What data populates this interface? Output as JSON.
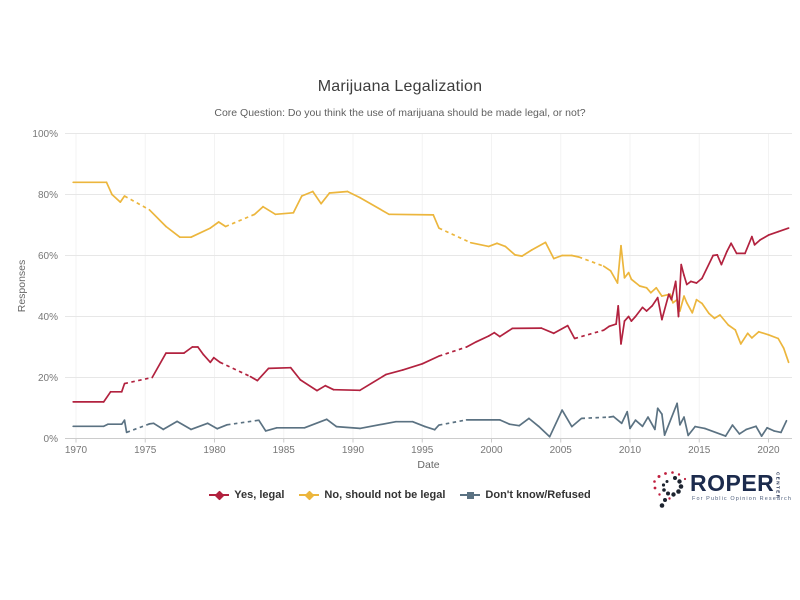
{
  "chart_data": {
    "type": "line",
    "title": "Marijuana Legalization",
    "subtitle": "Core Question: Do you think the use of marijuana should be made legal, or not?",
    "xlabel": "Date",
    "ylabel": "Responses",
    "x_ticks": [
      1970,
      1975,
      1980,
      1985,
      1990,
      1995,
      2000,
      2005,
      2010,
      2015,
      2020
    ],
    "y_ticks": [
      {
        "value": 0,
        "label": "0%"
      },
      {
        "value": 20,
        "label": "20%"
      },
      {
        "value": 40,
        "label": "40%"
      },
      {
        "value": 60,
        "label": "60%"
      },
      {
        "value": 80,
        "label": "80%"
      },
      {
        "value": 100,
        "label": "100%"
      }
    ],
    "x_range": [
      1969.4,
      2022.3
    ],
    "y_range": [
      0,
      100
    ],
    "grid": true,
    "legend_position": "bottom",
    "note": "points are [year, percent, dashed_gap_to_next]; dashed segments mark polling gaps",
    "series": [
      {
        "name": "Don't know/Refused",
        "color": "#5b7282",
        "marker": "square",
        "points": [
          [
            1969.8,
            4,
            0
          ],
          [
            1972.0,
            4,
            0
          ],
          [
            1972.3,
            4.7,
            0
          ],
          [
            1973.3,
            4.7,
            0
          ],
          [
            1973.5,
            6,
            0
          ],
          [
            1973.65,
            2,
            1
          ],
          [
            1975.3,
            4.8,
            0
          ],
          [
            1975.6,
            5,
            0
          ],
          [
            1976.3,
            3,
            0
          ],
          [
            1977.3,
            5.6,
            0
          ],
          [
            1978.3,
            3,
            0
          ],
          [
            1979.5,
            5,
            0
          ],
          [
            1980.2,
            3.2,
            0
          ],
          [
            1980.9,
            4.5,
            1
          ],
          [
            1983.2,
            6,
            0
          ],
          [
            1983.7,
            2.5,
            0
          ],
          [
            1984.5,
            3.5,
            0
          ],
          [
            1986.5,
            3.5,
            0
          ],
          [
            1988.1,
            6.3,
            0
          ],
          [
            1988.8,
            3.9,
            0
          ],
          [
            1990.5,
            3.3,
            0
          ],
          [
            1993.1,
            5.5,
            0
          ],
          [
            1994.3,
            5.5,
            0
          ],
          [
            1995.2,
            3.9,
            0
          ],
          [
            1995.9,
            2.9,
            0
          ],
          [
            1996.2,
            4.4,
            1
          ],
          [
            1998.2,
            6.1,
            0
          ],
          [
            2000.6,
            6.1,
            0
          ],
          [
            2001.3,
            4.7,
            0
          ],
          [
            2002.0,
            4.2,
            0
          ],
          [
            2002.7,
            6.6,
            0
          ],
          [
            2003.4,
            4,
            0
          ],
          [
            2004.2,
            0.6,
            0
          ],
          [
            2005.1,
            9.3,
            0
          ],
          [
            2005.8,
            3.9,
            0
          ],
          [
            2006.5,
            6.6,
            1
          ],
          [
            2008.5,
            7,
            0
          ],
          [
            2008.8,
            7.2,
            0
          ],
          [
            2009.4,
            5,
            0
          ],
          [
            2009.8,
            8.8,
            0
          ],
          [
            2010.0,
            3.3,
            0
          ],
          [
            2010.4,
            6,
            0
          ],
          [
            2010.9,
            4,
            0
          ],
          [
            2011.3,
            7,
            0
          ],
          [
            2011.8,
            3,
            0
          ],
          [
            2012.0,
            9.9,
            0
          ],
          [
            2012.3,
            8,
            0
          ],
          [
            2012.5,
            1.1,
            0
          ],
          [
            2013.4,
            11.5,
            0
          ],
          [
            2013.6,
            4.5,
            0
          ],
          [
            2013.9,
            7,
            0
          ],
          [
            2014.2,
            1,
            0
          ],
          [
            2014.7,
            3.9,
            0
          ],
          [
            2015.4,
            3.3,
            0
          ],
          [
            2016.9,
            0.8,
            0
          ],
          [
            2017.4,
            4.4,
            0
          ],
          [
            2017.9,
            1.5,
            0
          ],
          [
            2018.4,
            3,
            0
          ],
          [
            2019.1,
            4,
            0
          ],
          [
            2019.5,
            0.8,
            0
          ],
          [
            2019.9,
            3.5,
            0
          ],
          [
            2020.4,
            2.5,
            0
          ],
          [
            2020.9,
            2,
            0
          ],
          [
            2021.3,
            5.8,
            0
          ]
        ]
      },
      {
        "name": "No, should not be legal",
        "color": "#ecb63d",
        "marker": "diamond",
        "points": [
          [
            1969.8,
            84,
            0
          ],
          [
            1972.2,
            84,
            0
          ],
          [
            1972.6,
            80,
            0
          ],
          [
            1973.2,
            77.5,
            0
          ],
          [
            1973.5,
            79.5,
            1
          ],
          [
            1975.3,
            75,
            0
          ],
          [
            1976.5,
            69.5,
            0
          ],
          [
            1977.5,
            66,
            0
          ],
          [
            1978.3,
            66,
            0
          ],
          [
            1979.7,
            69,
            0
          ],
          [
            1980.3,
            71,
            0
          ],
          [
            1980.8,
            69.5,
            1
          ],
          [
            1982.9,
            73.5,
            0
          ],
          [
            1983.5,
            76,
            0
          ],
          [
            1984.4,
            73.5,
            0
          ],
          [
            1985.7,
            74,
            0
          ],
          [
            1986.3,
            79.5,
            0
          ],
          [
            1987.1,
            81,
            0
          ],
          [
            1987.7,
            77,
            0
          ],
          [
            1988.3,
            80.5,
            0
          ],
          [
            1989.6,
            81,
            0
          ],
          [
            1990.5,
            79,
            0
          ],
          [
            1992.6,
            73.5,
            0
          ],
          [
            1995.8,
            73.3,
            0
          ],
          [
            1996.2,
            69,
            1
          ],
          [
            1998.5,
            64.2,
            0
          ],
          [
            1999.8,
            63,
            0
          ],
          [
            2000.4,
            64,
            0
          ],
          [
            2001.0,
            63,
            0
          ],
          [
            2001.7,
            60.2,
            0
          ],
          [
            2002.2,
            59.8,
            0
          ],
          [
            2002.9,
            61.8,
            0
          ],
          [
            2003.9,
            64.3,
            0
          ],
          [
            2004.5,
            59,
            0
          ],
          [
            2005.1,
            60,
            0
          ],
          [
            2005.8,
            60,
            0
          ],
          [
            2006.3,
            59.5,
            1
          ],
          [
            2008.1,
            56.5,
            0
          ],
          [
            2008.6,
            55,
            0
          ],
          [
            2009.1,
            51,
            0
          ],
          [
            2009.35,
            63.2,
            0
          ],
          [
            2009.6,
            52.7,
            0
          ],
          [
            2009.9,
            54.4,
            0
          ],
          [
            2010.1,
            52.2,
            0
          ],
          [
            2010.7,
            50,
            0
          ],
          [
            2011.2,
            49.4,
            0
          ],
          [
            2011.5,
            47.8,
            0
          ],
          [
            2011.9,
            49.4,
            0
          ],
          [
            2012.3,
            46.7,
            0
          ],
          [
            2012.9,
            47.3,
            0
          ],
          [
            2013.1,
            44.5,
            0
          ],
          [
            2013.4,
            45.5,
            0
          ],
          [
            2013.6,
            41.8,
            0
          ],
          [
            2013.9,
            46.7,
            0
          ],
          [
            2014.1,
            44.5,
            0
          ],
          [
            2014.5,
            41.2,
            0
          ],
          [
            2014.8,
            45.5,
            0
          ],
          [
            2015.2,
            44.3,
            0
          ],
          [
            2015.7,
            41,
            0
          ],
          [
            2016.1,
            39.4,
            0
          ],
          [
            2016.5,
            40.5,
            0
          ],
          [
            2017.1,
            37.2,
            0
          ],
          [
            2017.6,
            35.6,
            0
          ],
          [
            2018.0,
            31,
            0
          ],
          [
            2018.5,
            34.5,
            0
          ],
          [
            2018.8,
            33,
            0
          ],
          [
            2019.3,
            35,
            0
          ],
          [
            2020.0,
            34,
            0
          ],
          [
            2020.7,
            32.8,
            0
          ],
          [
            2021.1,
            29.6,
            0
          ],
          [
            2021.45,
            25,
            0
          ]
        ]
      },
      {
        "name": "Yes, legal",
        "color": "#b2223f",
        "marker": "diamond",
        "points": [
          [
            1969.8,
            12,
            0
          ],
          [
            1972.0,
            12,
            0
          ],
          [
            1972.5,
            15.3,
            0
          ],
          [
            1973.3,
            15.3,
            0
          ],
          [
            1973.5,
            18,
            1
          ],
          [
            1975.5,
            20,
            0
          ],
          [
            1976.5,
            28,
            0
          ],
          [
            1977.8,
            28,
            0
          ],
          [
            1978.4,
            30,
            0
          ],
          [
            1978.8,
            30,
            0
          ],
          [
            1979.2,
            27.5,
            0
          ],
          [
            1979.7,
            25,
            0
          ],
          [
            1979.95,
            26.5,
            0
          ],
          [
            1980.4,
            25,
            1
          ],
          [
            1982.6,
            20.3,
            0
          ],
          [
            1983.1,
            19,
            0
          ],
          [
            1983.9,
            23,
            0
          ],
          [
            1985.5,
            23.2,
            0
          ],
          [
            1986.2,
            19.2,
            0
          ],
          [
            1987.4,
            15.7,
            0
          ],
          [
            1988.0,
            17.3,
            0
          ],
          [
            1988.6,
            16,
            0
          ],
          [
            1990.5,
            15.8,
            0
          ],
          [
            1992.4,
            21,
            0
          ],
          [
            1993.6,
            22.5,
            0
          ],
          [
            1995.0,
            24.5,
            0
          ],
          [
            1996.2,
            27,
            1
          ],
          [
            1998.2,
            30,
            0
          ],
          [
            1998.9,
            31.7,
            0
          ],
          [
            1999.8,
            33.6,
            0
          ],
          [
            2000.2,
            34.7,
            0
          ],
          [
            2000.6,
            33.4,
            0
          ],
          [
            2001.5,
            36.1,
            0
          ],
          [
            2003.6,
            36.2,
            0
          ],
          [
            2004.5,
            34.5,
            0
          ],
          [
            2005.5,
            37,
            0
          ],
          [
            2006.0,
            32.8,
            1
          ],
          [
            2008.1,
            35.5,
            0
          ],
          [
            2008.5,
            36.8,
            0
          ],
          [
            2009.0,
            37.5,
            0
          ],
          [
            2009.15,
            43.5,
            0
          ],
          [
            2009.35,
            31,
            0
          ],
          [
            2009.6,
            38.5,
            0
          ],
          [
            2009.9,
            40,
            0
          ],
          [
            2010.1,
            38.5,
            0
          ],
          [
            2010.4,
            40,
            0
          ],
          [
            2010.9,
            43,
            0
          ],
          [
            2011.2,
            41.8,
            0
          ],
          [
            2011.6,
            43.5,
            0
          ],
          [
            2012.0,
            46.2,
            0
          ],
          [
            2012.3,
            39,
            0
          ],
          [
            2012.8,
            47.3,
            0
          ],
          [
            2013.0,
            45.5,
            0
          ],
          [
            2013.3,
            51.5,
            0
          ],
          [
            2013.5,
            40,
            0
          ],
          [
            2013.7,
            57,
            0
          ],
          [
            2013.9,
            53.5,
            0
          ],
          [
            2014.1,
            50.5,
            0
          ],
          [
            2014.4,
            51.5,
            0
          ],
          [
            2014.8,
            51,
            0
          ],
          [
            2015.2,
            52.5,
            0
          ],
          [
            2016.0,
            60,
            0
          ],
          [
            2016.3,
            60.2,
            0
          ],
          [
            2016.6,
            57,
            0
          ],
          [
            2017.0,
            61.3,
            0
          ],
          [
            2017.3,
            64,
            0
          ],
          [
            2017.7,
            60.7,
            0
          ],
          [
            2018.3,
            60.7,
            0
          ],
          [
            2018.8,
            66.2,
            0
          ],
          [
            2019.0,
            63.5,
            0
          ],
          [
            2019.4,
            65.1,
            0
          ],
          [
            2020.0,
            66.7,
            0
          ],
          [
            2020.7,
            67.8,
            0
          ],
          [
            2021.45,
            69,
            0
          ]
        ]
      }
    ],
    "legend_order": [
      2,
      1,
      0
    ],
    "colors": {
      "grid": "#e7e7e7",
      "grid_vertical": "#f3f3f3",
      "axis": "#cccccc",
      "tick_text": "#777777"
    }
  },
  "logo": {
    "name": "ROPER",
    "center": "CENTER",
    "tagline": "For Public Opinion Research"
  }
}
